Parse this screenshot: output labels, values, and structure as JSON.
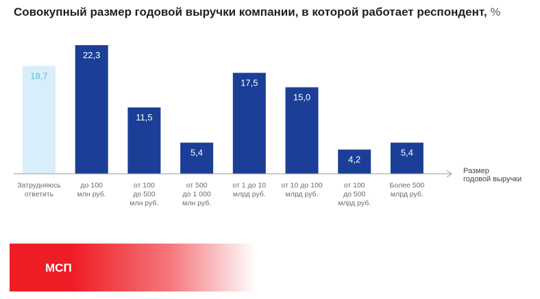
{
  "title": "Совокупный размер годовой выручки компании, в которой работает респондент,",
  "title_unit": "%",
  "banner_label": "МСП",
  "colors": {
    "bar": "#1b3f96",
    "bar_highlight": "#d9eefb",
    "label_on_bar": "#ffffff",
    "label_highlight": "#5bb8e6",
    "axis": "#9a9a9a",
    "tick_text": "#6b6b6b",
    "banner": "#ee1c25"
  },
  "chart_data": {
    "type": "bar",
    "title": "Совокупный размер годовой выручки компании, в которой работает респондент, %",
    "xlabel": "Размер годовой выручки",
    "ylabel": "",
    "categories": [
      "Затрудняюсь ответить",
      "до 100 млн руб.",
      "от 100 до 500 млн руб.",
      "от 500 до 1 000 млн руб.",
      "от 1 до 10 млрд руб.",
      "от 10 до 100 млрд руб.",
      "от 100 до 500 млрд руб.",
      "Более 500 млрд руб."
    ],
    "category_lines": [
      [
        "Затрудняюсь",
        "ответить"
      ],
      [
        "до 100",
        "млн руб."
      ],
      [
        "от 100",
        "до 500",
        "млн руб."
      ],
      [
        "от 500",
        "до 1 000",
        "млн руб."
      ],
      [
        "от 1 до 10",
        "млрд руб."
      ],
      [
        "от 10 до 100",
        "млрд руб."
      ],
      [
        "от 100",
        "до 500",
        "млрд руб."
      ],
      [
        "Более 500",
        "млрд руб."
      ]
    ],
    "values": [
      18.7,
      22.3,
      11.5,
      5.4,
      17.5,
      15.0,
      4.2,
      5.4
    ],
    "value_labels": [
      "18,7",
      "22,3",
      "11,5",
      "5,4",
      "17,5",
      "15,0",
      "4,2",
      "5,4"
    ],
    "highlight_index": 0,
    "ylim": [
      0,
      22.3
    ],
    "grid": false,
    "legend": "none"
  }
}
